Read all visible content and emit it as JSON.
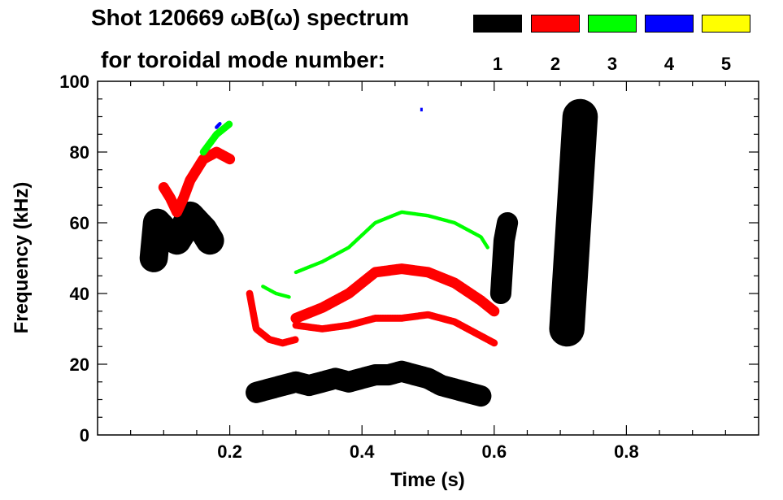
{
  "chart_data": {
    "type": "heatmap",
    "title": "Shot 120669 ωB(ω) spectrum",
    "subtitle": "for toroidal mode number:",
    "xlabel": "Time (s)",
    "ylabel": "Frequency (kHz)",
    "xlim": [
      0.0,
      1.0
    ],
    "ylim": [
      0,
      100
    ],
    "x_ticks": [
      0.2,
      0.4,
      0.6,
      0.8
    ],
    "y_ticks": [
      0,
      20,
      40,
      60,
      80,
      100
    ],
    "grid": false,
    "legend_position": "top-right",
    "modes": [
      {
        "label": "1",
        "color": "#000000"
      },
      {
        "label": "2",
        "color": "#ff0000"
      },
      {
        "label": "3",
        "color": "#00ff00"
      },
      {
        "label": "4",
        "color": "#0000ff"
      },
      {
        "label": "5",
        "color": "#ffff00"
      }
    ],
    "series": [
      {
        "mode": "1",
        "segments": [
          {
            "t": [
              0.085,
              0.09,
              0.1,
              0.11,
              0.12,
              0.13,
              0.14,
              0.15,
              0.16,
              0.17
            ],
            "f": [
              50,
              60,
              58,
              56,
              55,
              58,
              62,
              60,
              58,
              55
            ],
            "df": 8
          },
          {
            "t": [
              0.24,
              0.26,
              0.28,
              0.3,
              0.32,
              0.34,
              0.36,
              0.38,
              0.4,
              0.42,
              0.44,
              0.46,
              0.48,
              0.5,
              0.52,
              0.54,
              0.56,
              0.58
            ],
            "f": [
              12,
              13,
              14,
              15,
              14,
              15,
              16,
              15,
              16,
              17,
              17,
              18,
              17,
              16,
              14,
              13,
              12,
              11
            ],
            "df": 6
          },
          {
            "t": [
              0.61,
              0.615,
              0.62
            ],
            "f": [
              40,
              55,
              60
            ],
            "df": 6
          },
          {
            "t": [
              0.71,
              0.72,
              0.73
            ],
            "f": [
              30,
              60,
              90
            ],
            "df": 10
          }
        ]
      },
      {
        "mode": "2",
        "segments": [
          {
            "t": [
              0.1,
              0.11,
              0.12,
              0.13,
              0.14,
              0.16,
              0.18,
              0.2
            ],
            "f": [
              70,
              67,
              63,
              67,
              72,
              78,
              80,
              78
            ],
            "df": 3
          },
          {
            "t": [
              0.23,
              0.24,
              0.26,
              0.28,
              0.3
            ],
            "f": [
              40,
              30,
              27,
              26,
              27
            ],
            "df": 2
          },
          {
            "t": [
              0.3,
              0.34,
              0.38,
              0.42,
              0.46,
              0.5,
              0.54,
              0.58,
              0.6
            ],
            "f": [
              31,
              30,
              31,
              33,
              33,
              34,
              32,
              28,
              26
            ],
            "df": 2
          },
          {
            "t": [
              0.3,
              0.34,
              0.38,
              0.42,
              0.46,
              0.5,
              0.54,
              0.58,
              0.6
            ],
            "f": [
              33,
              36,
              40,
              46,
              47,
              46,
              43,
              38,
              35
            ],
            "df": 3
          }
        ]
      },
      {
        "mode": "3",
        "segments": [
          {
            "t": [
              0.16,
              0.18,
              0.2
            ],
            "f": [
              80,
              85,
              88
            ],
            "df": 2
          },
          {
            "t": [
              0.25,
              0.27,
              0.29
            ],
            "f": [
              42,
              40,
              39
            ],
            "df": 1
          },
          {
            "t": [
              0.3,
              0.34,
              0.38,
              0.42,
              0.46,
              0.5,
              0.54,
              0.58,
              0.59
            ],
            "f": [
              46,
              49,
              53,
              60,
              63,
              62,
              60,
              56,
              53
            ],
            "df": 1
          }
        ]
      },
      {
        "mode": "4",
        "segments": [
          {
            "t": [
              0.18,
              0.185
            ],
            "f": [
              87,
              88
            ],
            "df": 1
          },
          {
            "t": [
              0.49
            ],
            "f": [
              92
            ],
            "df": 1
          }
        ]
      },
      {
        "mode": "5",
        "segments": []
      }
    ]
  }
}
